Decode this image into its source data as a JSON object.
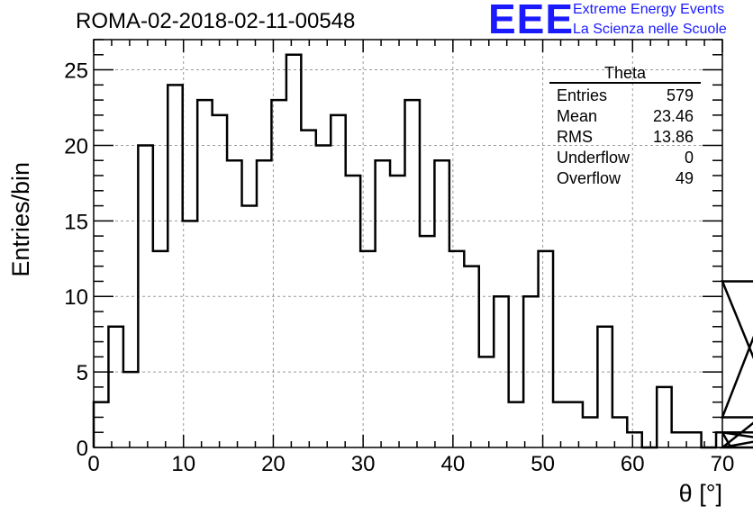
{
  "title": "ROMA-02-2018-02-11-00548",
  "logo": {
    "text": "EEE",
    "line1": "Extreme Energy Events",
    "line2": "La Scienza nelle Scuole",
    "color": "#1a1aff"
  },
  "stats": {
    "name": "Theta",
    "rows": [
      {
        "label": "Entries",
        "value": "579"
      },
      {
        "label": "Mean",
        "value": "23.46"
      },
      {
        "label": "RMS",
        "value": "13.86"
      },
      {
        "label": "Underflow",
        "value": "0"
      },
      {
        "label": "Overflow",
        "value": "49"
      }
    ]
  },
  "chart_data": {
    "type": "bar",
    "xlabel": "θ [°]",
    "ylabel": "Entries/bin",
    "xlim": [
      0,
      70
    ],
    "ylim": [
      0,
      27
    ],
    "bin_width": 1.65,
    "x_ticks": [
      0,
      10,
      20,
      30,
      40,
      50,
      60,
      70
    ],
    "y_ticks": [
      0,
      5,
      10,
      15,
      20,
      25
    ],
    "grid": true,
    "values": [
      3,
      8,
      5,
      20,
      13,
      24,
      15,
      23,
      22,
      19,
      16,
      19,
      23,
      26,
      21,
      20,
      22,
      18,
      13,
      19,
      18,
      23,
      14,
      19,
      13,
      12,
      6,
      10,
      3,
      10,
      13,
      3,
      3,
      2,
      8,
      2,
      1,
      0,
      4,
      1,
      1,
      0,
      1,
      0,
      0,
      2,
      11,
      0,
      1,
      0
    ]
  }
}
